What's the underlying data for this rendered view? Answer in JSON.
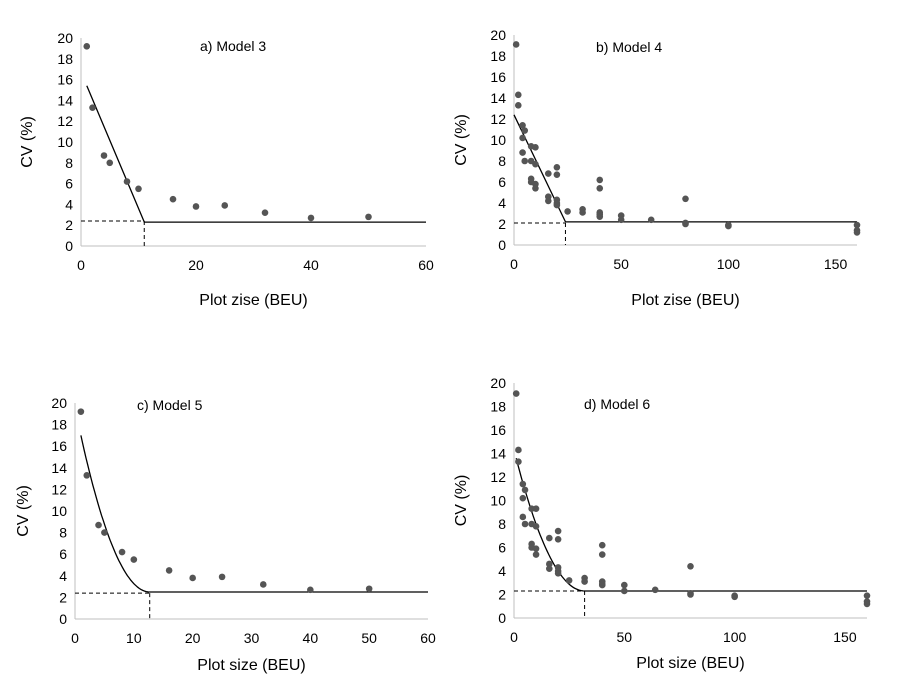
{
  "chart_data": [
    {
      "type": "scatter",
      "panel_label": "a) Model 3",
      "xlabel": "Plot zise (BEU)",
      "ylabel": "CV (%)",
      "xlim": [
        0,
        60
      ],
      "ylim": [
        0,
        20
      ],
      "xticks": [
        0,
        20,
        40,
        60
      ],
      "yticks": [
        0,
        2,
        4,
        6,
        8,
        10,
        12,
        14,
        16,
        18,
        20
      ],
      "points": [
        [
          1,
          19.2
        ],
        [
          2,
          13.3
        ],
        [
          4,
          8.7
        ],
        [
          5,
          8.0
        ],
        [
          8,
          6.2
        ],
        [
          10,
          5.5
        ],
        [
          16,
          4.5
        ],
        [
          20,
          3.8
        ],
        [
          25,
          3.9
        ],
        [
          32,
          3.2
        ],
        [
          40,
          2.7
        ],
        [
          50,
          2.8
        ]
      ],
      "fit": {
        "kind": "linear-plateau",
        "line": [
          [
            1,
            15.4
          ],
          [
            11,
            2.3
          ],
          [
            60,
            2.3
          ]
        ],
        "breakpoint": [
          11,
          2.4
        ]
      }
    },
    {
      "type": "scatter",
      "panel_label": "b) Model 4",
      "xlabel": "Plot zise (BEU)",
      "ylabel": "CV (%)",
      "xlim": [
        0,
        160
      ],
      "ylim": [
        0,
        20
      ],
      "xticks": [
        0,
        50,
        100,
        150
      ],
      "yticks": [
        0,
        2,
        4,
        6,
        8,
        10,
        12,
        14,
        16,
        18,
        20
      ],
      "points": [
        [
          1,
          19.1
        ],
        [
          2,
          14.3
        ],
        [
          2,
          13.3
        ],
        [
          4,
          11.4
        ],
        [
          4,
          10.2
        ],
        [
          5,
          10.9
        ],
        [
          4,
          8.8
        ],
        [
          5,
          8.0
        ],
        [
          8,
          9.4
        ],
        [
          8,
          8.0
        ],
        [
          10,
          9.3
        ],
        [
          10,
          7.7
        ],
        [
          8,
          6.3
        ],
        [
          8,
          6.0
        ],
        [
          10,
          5.8
        ],
        [
          10,
          5.4
        ],
        [
          16,
          6.8
        ],
        [
          16,
          4.6
        ],
        [
          16,
          4.2
        ],
        [
          20,
          7.4
        ],
        [
          20,
          6.7
        ],
        [
          20,
          4.3
        ],
        [
          20,
          4.0
        ],
        [
          20,
          3.8
        ],
        [
          25,
          3.2
        ],
        [
          32,
          3.4
        ],
        [
          32,
          3.1
        ],
        [
          40,
          6.2
        ],
        [
          40,
          5.4
        ],
        [
          40,
          3.1
        ],
        [
          40,
          2.9
        ],
        [
          40,
          2.7
        ],
        [
          50,
          2.8
        ],
        [
          50,
          2.4
        ],
        [
          64,
          2.4
        ],
        [
          80,
          4.4
        ],
        [
          80,
          2.1
        ],
        [
          80,
          2.0
        ],
        [
          100,
          1.9
        ],
        [
          100,
          1.8
        ],
        [
          160,
          1.9
        ],
        [
          160,
          1.4
        ],
        [
          160,
          1.2
        ]
      ],
      "fit": {
        "kind": "linear-plateau",
        "line": [
          [
            0,
            12.4
          ],
          [
            24,
            2.2
          ],
          [
            160,
            2.2
          ]
        ],
        "breakpoint": [
          24,
          2.1
        ]
      }
    },
    {
      "type": "scatter",
      "panel_label": "c) Model 5",
      "xlabel": "Plot size (BEU)",
      "ylabel": "CV (%)",
      "xlim": [
        0,
        60
      ],
      "ylim": [
        0,
        20
      ],
      "xticks": [
        0,
        10,
        20,
        30,
        40,
        50,
        60
      ],
      "yticks": [
        0,
        2,
        4,
        6,
        8,
        10,
        12,
        14,
        16,
        18,
        20
      ],
      "points": [
        [
          1,
          19.2
        ],
        [
          2,
          13.3
        ],
        [
          4,
          8.7
        ],
        [
          5,
          8.0
        ],
        [
          8,
          6.2
        ],
        [
          10,
          5.5
        ],
        [
          16,
          4.5
        ],
        [
          20,
          3.8
        ],
        [
          25,
          3.9
        ],
        [
          32,
          3.2
        ],
        [
          40,
          2.7
        ],
        [
          50,
          2.8
        ]
      ],
      "fit": {
        "kind": "quadratic-plateau",
        "start": [
          1,
          17.0
        ],
        "join": [
          12.7,
          2.5
        ],
        "plateau": 2.5,
        "x_end": 60,
        "breakpoint": [
          12.7,
          2.4
        ]
      }
    },
    {
      "type": "scatter",
      "panel_label": "d) Model 6",
      "xlabel": "Plot size (BEU)",
      "ylabel": "CV (%)",
      "xlim": [
        0,
        160
      ],
      "ylim": [
        0,
        20
      ],
      "xticks": [
        0,
        50,
        100,
        150
      ],
      "yticks": [
        0,
        2,
        4,
        6,
        8,
        10,
        12,
        14,
        16,
        18,
        20
      ],
      "points": [
        [
          1,
          19.1
        ],
        [
          2,
          14.3
        ],
        [
          2,
          13.3
        ],
        [
          4,
          11.4
        ],
        [
          4,
          10.2
        ],
        [
          5,
          10.9
        ],
        [
          4,
          8.6
        ],
        [
          5,
          8.0
        ],
        [
          8,
          9.3
        ],
        [
          8,
          8.0
        ],
        [
          10,
          9.3
        ],
        [
          10,
          7.8
        ],
        [
          8,
          6.3
        ],
        [
          8,
          6.0
        ],
        [
          10,
          5.9
        ],
        [
          10,
          5.4
        ],
        [
          16,
          6.8
        ],
        [
          16,
          4.6
        ],
        [
          16,
          4.2
        ],
        [
          20,
          7.4
        ],
        [
          20,
          6.7
        ],
        [
          20,
          4.3
        ],
        [
          20,
          4.0
        ],
        [
          20,
          3.8
        ],
        [
          25,
          3.2
        ],
        [
          32,
          3.4
        ],
        [
          32,
          3.1
        ],
        [
          40,
          6.2
        ],
        [
          40,
          5.4
        ],
        [
          40,
          3.1
        ],
        [
          40,
          2.9
        ],
        [
          40,
          2.8
        ],
        [
          50,
          2.8
        ],
        [
          50,
          2.3
        ],
        [
          64,
          2.4
        ],
        [
          80,
          4.4
        ],
        [
          80,
          2.1
        ],
        [
          80,
          2.0
        ],
        [
          100,
          1.9
        ],
        [
          100,
          1.8
        ],
        [
          160,
          1.9
        ],
        [
          160,
          1.4
        ],
        [
          160,
          1.2
        ]
      ],
      "fit": {
        "kind": "quadratic-plateau",
        "start": [
          1,
          13.6
        ],
        "join": [
          32,
          2.3
        ],
        "plateau": 2.3,
        "x_end": 160,
        "breakpoint": [
          32,
          2.3
        ]
      }
    }
  ]
}
